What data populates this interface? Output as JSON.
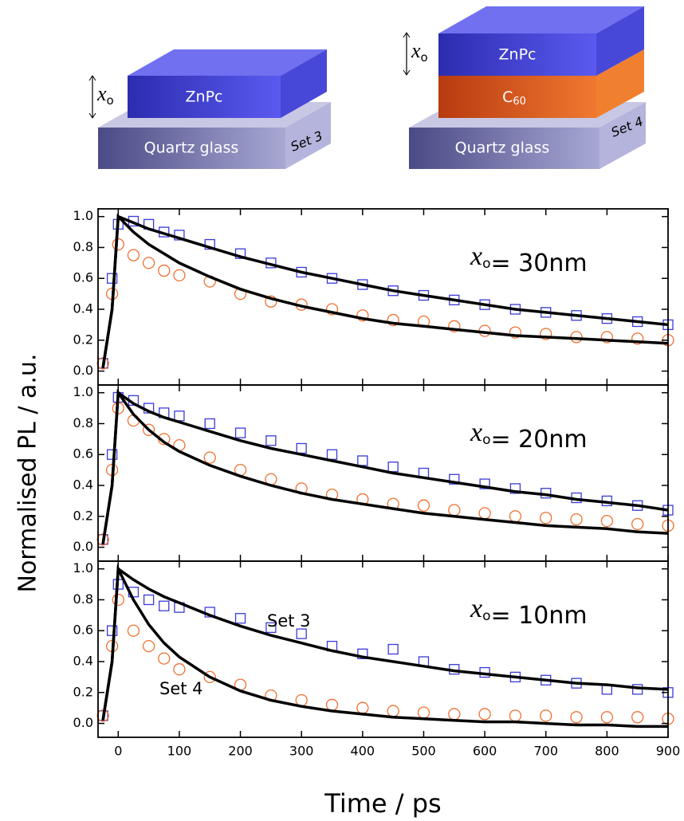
{
  "diagrams": {
    "left": {
      "top_layer": "ZnPc",
      "substrate": "Quartz glass",
      "set": "Set 3",
      "thickness": {
        "symbol": "x",
        "subscript": "o"
      }
    },
    "right": {
      "top_layer": "ZnPc",
      "middle_layer": {
        "text": "C",
        "subscript": "60"
      },
      "substrate": "Quartz glass",
      "set": "Set 4",
      "thickness": {
        "symbol": "x",
        "subscript": "o"
      }
    }
  },
  "chart_data": [
    {
      "type": "scatter",
      "annotation": {
        "symbol": "x",
        "subscript": "o",
        "text": "= 30nm"
      },
      "x": [
        -25,
        -10,
        0,
        25,
        50,
        75,
        100,
        150,
        200,
        250,
        300,
        350,
        400,
        450,
        500,
        550,
        600,
        650,
        700,
        750,
        800,
        850,
        900
      ],
      "series": [
        {
          "color": "#3a3ad8",
          "marker": "square",
          "values": [
            0.05,
            0.6,
            0.95,
            0.97,
            0.95,
            0.9,
            0.88,
            0.82,
            0.76,
            0.7,
            0.64,
            0.6,
            0.56,
            0.52,
            0.49,
            0.46,
            0.43,
            0.4,
            0.38,
            0.36,
            0.34,
            0.32,
            0.3
          ]
        },
        {
          "color": "#f07030",
          "marker": "circle",
          "values": [
            0.05,
            0.5,
            0.82,
            0.75,
            0.7,
            0.65,
            0.62,
            0.58,
            0.5,
            0.45,
            0.43,
            0.4,
            0.36,
            0.33,
            0.32,
            0.29,
            0.26,
            0.25,
            0.24,
            0.22,
            0.22,
            0.21,
            0.2
          ]
        },
        {
          "color": "#000000",
          "values": [
            0.02,
            0.4,
            1.0,
            0.96,
            0.92,
            0.89,
            0.86,
            0.8,
            0.74,
            0.69,
            0.64,
            0.6,
            0.56,
            0.52,
            0.49,
            0.46,
            0.43,
            0.4,
            0.38,
            0.36,
            0.34,
            0.32,
            0.3
          ]
        },
        {
          "color": "#000000",
          "values": [
            0.02,
            0.4,
            1.0,
            0.9,
            0.82,
            0.76,
            0.7,
            0.61,
            0.53,
            0.47,
            0.42,
            0.38,
            0.34,
            0.31,
            0.29,
            0.27,
            0.25,
            0.23,
            0.22,
            0.21,
            0.2,
            0.19,
            0.18
          ]
        }
      ],
      "xlim": [
        -33,
        900
      ],
      "xticks": [
        0,
        100,
        200,
        300,
        400,
        500,
        600,
        700,
        800,
        900
      ],
      "show_xtick_labels": false,
      "ylim": [
        -0.09,
        1.05
      ],
      "yticks": [
        {
          "value": 0,
          "label": "0.0"
        },
        0.2,
        0.4,
        0.6,
        0.8,
        {
          "value": 1,
          "label": "1.0"
        }
      ]
    },
    {
      "type": "scatter",
      "ylabel": "Normalised PL / a.u.",
      "annotation": {
        "symbol": "x",
        "subscript": "o",
        "text": "= 20nm"
      },
      "x": [
        -25,
        -10,
        0,
        25,
        50,
        75,
        100,
        150,
        200,
        250,
        300,
        350,
        400,
        450,
        500,
        550,
        600,
        650,
        700,
        750,
        800,
        850,
        900
      ],
      "series": [
        {
          "color": "#3a3ad8",
          "marker": "square",
          "values": [
            0.05,
            0.6,
            0.97,
            0.95,
            0.9,
            0.87,
            0.85,
            0.8,
            0.74,
            0.69,
            0.64,
            0.6,
            0.56,
            0.52,
            0.48,
            0.44,
            0.41,
            0.38,
            0.35,
            0.32,
            0.3,
            0.27,
            0.24
          ]
        },
        {
          "color": "#f07030",
          "marker": "circle",
          "values": [
            0.05,
            0.5,
            0.9,
            0.82,
            0.76,
            0.7,
            0.66,
            0.58,
            0.5,
            0.44,
            0.38,
            0.34,
            0.31,
            0.28,
            0.27,
            0.24,
            0.22,
            0.2,
            0.19,
            0.18,
            0.17,
            0.15,
            0.14
          ]
        },
        {
          "color": "#000000",
          "values": [
            0.02,
            0.4,
            1.0,
            0.93,
            0.88,
            0.84,
            0.81,
            0.75,
            0.69,
            0.64,
            0.6,
            0.56,
            0.52,
            0.48,
            0.45,
            0.42,
            0.39,
            0.36,
            0.34,
            0.31,
            0.29,
            0.27,
            0.24
          ]
        },
        {
          "color": "#000000",
          "values": [
            0.02,
            0.4,
            1.0,
            0.86,
            0.76,
            0.68,
            0.62,
            0.53,
            0.46,
            0.4,
            0.35,
            0.31,
            0.28,
            0.25,
            0.22,
            0.2,
            0.18,
            0.16,
            0.14,
            0.13,
            0.12,
            0.1,
            0.09
          ]
        }
      ],
      "xlim": [
        -33,
        900
      ],
      "xticks": [
        0,
        100,
        200,
        300,
        400,
        500,
        600,
        700,
        800,
        900
      ],
      "show_xtick_labels": false,
      "ylim": [
        -0.09,
        1.05
      ],
      "yticks": [
        {
          "value": 0,
          "label": "0.0"
        },
        0.2,
        0.4,
        0.6,
        0.8,
        {
          "value": 1,
          "label": "1.0"
        }
      ]
    },
    {
      "type": "scatter",
      "xlabel": "Time / ps",
      "annotation": {
        "symbol": "x",
        "subscript": "o",
        "text": "= 10nm"
      },
      "x": [
        -25,
        -10,
        0,
        25,
        50,
        75,
        100,
        150,
        200,
        250,
        300,
        350,
        400,
        450,
        500,
        550,
        600,
        650,
        700,
        750,
        800,
        850,
        900
      ],
      "series": [
        {
          "name": "Set 3",
          "color": "#3a3ad8",
          "marker": "square",
          "values": [
            0.05,
            0.6,
            0.9,
            0.85,
            0.8,
            0.76,
            0.75,
            0.72,
            0.68,
            0.62,
            0.58,
            0.5,
            0.45,
            0.48,
            0.4,
            0.35,
            0.33,
            0.3,
            0.28,
            0.26,
            0.22,
            0.22,
            0.2
          ]
        },
        {
          "name": "Set 4",
          "color": "#f07030",
          "marker": "circle",
          "values": [
            0.05,
            0.5,
            0.8,
            0.6,
            0.5,
            0.42,
            0.35,
            0.3,
            0.25,
            0.18,
            0.15,
            0.12,
            0.1,
            0.08,
            0.07,
            0.06,
            0.06,
            0.05,
            0.05,
            0.04,
            0.04,
            0.04,
            0.03
          ]
        },
        {
          "color": "#000000",
          "values": [
            0.02,
            0.4,
            1.0,
            0.93,
            0.87,
            0.82,
            0.78,
            0.7,
            0.63,
            0.57,
            0.52,
            0.47,
            0.43,
            0.4,
            0.37,
            0.34,
            0.32,
            0.3,
            0.28,
            0.26,
            0.25,
            0.23,
            0.22
          ]
        },
        {
          "color": "#000000",
          "values": [
            0.02,
            0.4,
            1.0,
            0.8,
            0.64,
            0.52,
            0.43,
            0.3,
            0.21,
            0.15,
            0.11,
            0.08,
            0.06,
            0.04,
            0.03,
            0.02,
            0.01,
            0.01,
            0.0,
            -0.01,
            -0.01,
            -0.02,
            -0.02
          ]
        }
      ],
      "xlim": [
        -33,
        900
      ],
      "xticks": [
        0,
        100,
        200,
        300,
        400,
        500,
        600,
        700,
        800,
        900
      ],
      "ylim": [
        -0.09,
        1.05
      ],
      "yticks": [
        {
          "value": 0,
          "label": "0.0"
        },
        0.2,
        0.4,
        0.6,
        0.8,
        {
          "value": 1,
          "label": "1.0"
        }
      ]
    }
  ]
}
